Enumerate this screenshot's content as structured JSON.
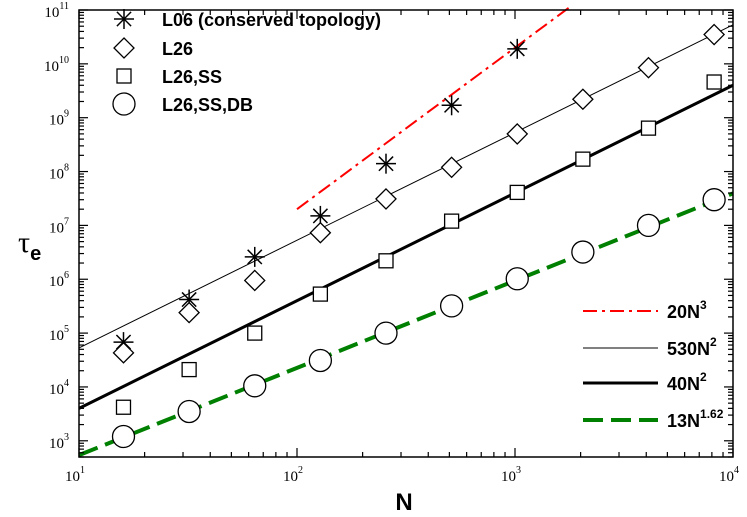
{
  "chart_data": {
    "type": "scatter",
    "xscale": "log",
    "yscale": "log",
    "xlim": [
      10,
      10000
    ],
    "ylim": [
      500,
      100000000000
    ],
    "xlabel": "N",
    "ylabel_base": "τ",
    "ylabel_sub": "e",
    "x_ticks": [
      {
        "value": 10,
        "base": "10",
        "exp": "1"
      },
      {
        "value": 100,
        "base": "10",
        "exp": "2"
      },
      {
        "value": 1000,
        "base": "10",
        "exp": "3"
      },
      {
        "value": 10000,
        "base": "10",
        "exp": "4"
      }
    ],
    "y_ticks": [
      {
        "value": 1000,
        "base": "10",
        "exp": "3"
      },
      {
        "value": 10000,
        "base": "10",
        "exp": "4"
      },
      {
        "value": 100000,
        "base": "10",
        "exp": "5"
      },
      {
        "value": 1000000,
        "base": "10",
        "exp": "6"
      },
      {
        "value": 10000000,
        "base": "10",
        "exp": "7"
      },
      {
        "value": 100000000,
        "base": "10",
        "exp": "8"
      },
      {
        "value": 1000000000,
        "base": "10",
        "exp": "9"
      },
      {
        "value": 10000000000,
        "base": "10",
        "exp": "10"
      },
      {
        "value": 100000000000,
        "base": "10",
        "exp": "11"
      }
    ],
    "series": [
      {
        "name": "L06 (conserved topology)",
        "marker": "asterisk",
        "x": [
          16,
          32,
          64,
          128,
          256,
          512,
          1024
        ],
        "y": [
          68000,
          420000,
          2600000,
          15000000,
          140000000,
          1700000000,
          19000000000
        ]
      },
      {
        "name": "L26",
        "marker": "diamond",
        "x": [
          16,
          32,
          64,
          128,
          256,
          512,
          1024,
          2048,
          4096,
          8192
        ],
        "y": [
          43000,
          240000,
          950000,
          7300000,
          31000000,
          120000000,
          500000000,
          2200000000,
          8500000000,
          35000000000
        ]
      },
      {
        "name": "L26,SS",
        "marker": "square",
        "x": [
          16,
          32,
          64,
          128,
          256,
          512,
          1024,
          2048,
          4096,
          8192
        ],
        "y": [
          4200,
          21000,
          100000,
          530000,
          2200000,
          12000000,
          41000000,
          170000000,
          640000000,
          4600000000
        ]
      },
      {
        "name": "L26,SS,DB",
        "marker": "circle",
        "x": [
          16,
          32,
          64,
          128,
          256,
          512,
          1024,
          2048,
          4096,
          8192
        ],
        "y": [
          1200,
          3500,
          10500,
          31000,
          100000,
          320000,
          1020000,
          3200000,
          10000000,
          30000000
        ]
      }
    ],
    "fits": [
      {
        "label_base": "20N",
        "label_exp": "3",
        "coef": 20,
        "power": 3,
        "xrange": [
          100,
          1800
        ],
        "style": "dashdot",
        "color": "#ff0000",
        "width": 2
      },
      {
        "label_base": "530N",
        "label_exp": "2",
        "coef": 530,
        "power": 2,
        "xrange": [
          10,
          10000
        ],
        "style": "solid",
        "color": "#000000",
        "width": 1
      },
      {
        "label_base": "40N",
        "label_exp": "2",
        "coef": 40,
        "power": 2,
        "xrange": [
          10,
          10000
        ],
        "style": "solid",
        "color": "#000000",
        "width": 3
      },
      {
        "label_base": "13N",
        "label_exp": "1.62",
        "coef": 13,
        "power": 1.62,
        "xrange": [
          10,
          10000
        ],
        "style": "dashed",
        "color": "#008000",
        "width": 4
      }
    ]
  }
}
